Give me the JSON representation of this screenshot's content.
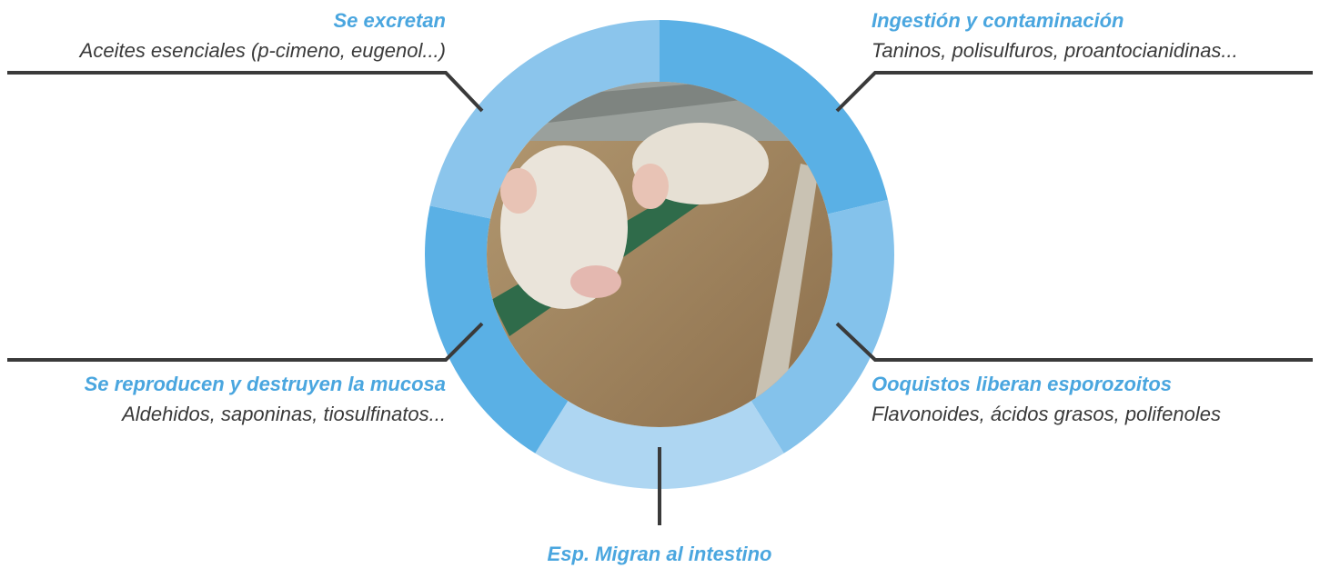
{
  "nodes": [
    {
      "title": "Se excretan",
      "subtitle": "Aceites esenciales (p-cimeno, eugenol...)"
    },
    {
      "title": "Ingestión y contaminación",
      "subtitle": "Taninos, polisulfuros, proantocianidinas..."
    },
    {
      "title": "Se reproducen y destruyen la mucosa",
      "subtitle": "Aldehidos, saponinas, tiosulfinatos..."
    },
    {
      "title": "Ooquistos liberan esporozoitos",
      "subtitle": "Flavonoides, ácidos grasos, polifenoles"
    },
    {
      "title": "Esp. Migran al intestino"
    }
  ]
}
